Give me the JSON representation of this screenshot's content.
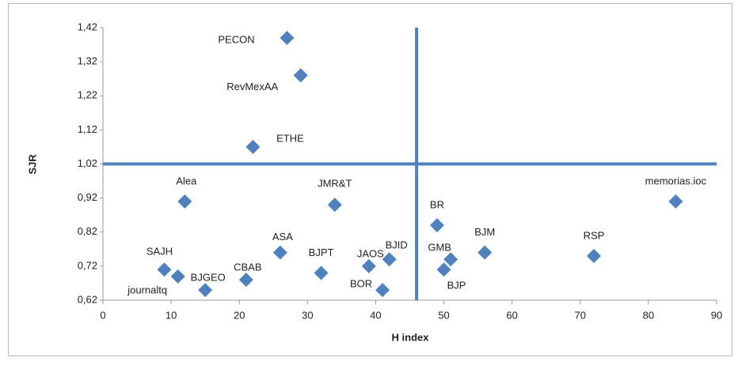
{
  "chart_data": {
    "type": "scatter",
    "x_label": "H index",
    "y_label": "SJR",
    "point_labels": [
      "PECON",
      "RevMexAA",
      "ETHE",
      "Alea",
      "JMR&T",
      "memorias.ioc",
      "BR",
      "ASA",
      "BJM",
      "RSP",
      "GMB",
      "BJID",
      "JAOS",
      "BJP",
      "SAJH",
      "BJGEO",
      "BJPT",
      "CBAB",
      "journaltq",
      "BOR"
    ],
    "x": [
      27,
      29,
      22,
      12,
      34,
      84,
      49,
      26,
      56,
      72,
      51,
      42,
      39,
      50,
      9,
      11,
      32,
      21,
      15,
      41
    ],
    "values": [
      1.39,
      1.28,
      1.07,
      0.91,
      0.9,
      0.91,
      0.84,
      0.76,
      0.76,
      0.75,
      0.74,
      0.74,
      0.72,
      0.71,
      0.71,
      0.69,
      0.7,
      0.68,
      0.65,
      0.65
    ],
    "color": "#4f81bd",
    "reference_x": 46,
    "reference_y": 1.02,
    "xlim": [
      0,
      90
    ],
    "xticks": [
      0,
      10,
      20,
      30,
      40,
      50,
      60,
      70,
      80,
      90
    ],
    "ylim": [
      0.62,
      1.42
    ],
    "yticks": [
      {
        "value": 0.62,
        "label": "0,62"
      },
      {
        "value": 0.72,
        "label": "0,72"
      },
      {
        "value": 0.82,
        "label": "0,82"
      },
      {
        "value": 0.92,
        "label": "0,92"
      },
      {
        "value": 1.02,
        "label": "1,02"
      },
      {
        "value": 1.12,
        "label": "1,12"
      },
      {
        "value": 1.22,
        "label": "1,22"
      },
      {
        "value": 1.32,
        "label": "1,32"
      },
      {
        "value": 1.42,
        "label": "1,42"
      }
    ],
    "grid": false
  }
}
